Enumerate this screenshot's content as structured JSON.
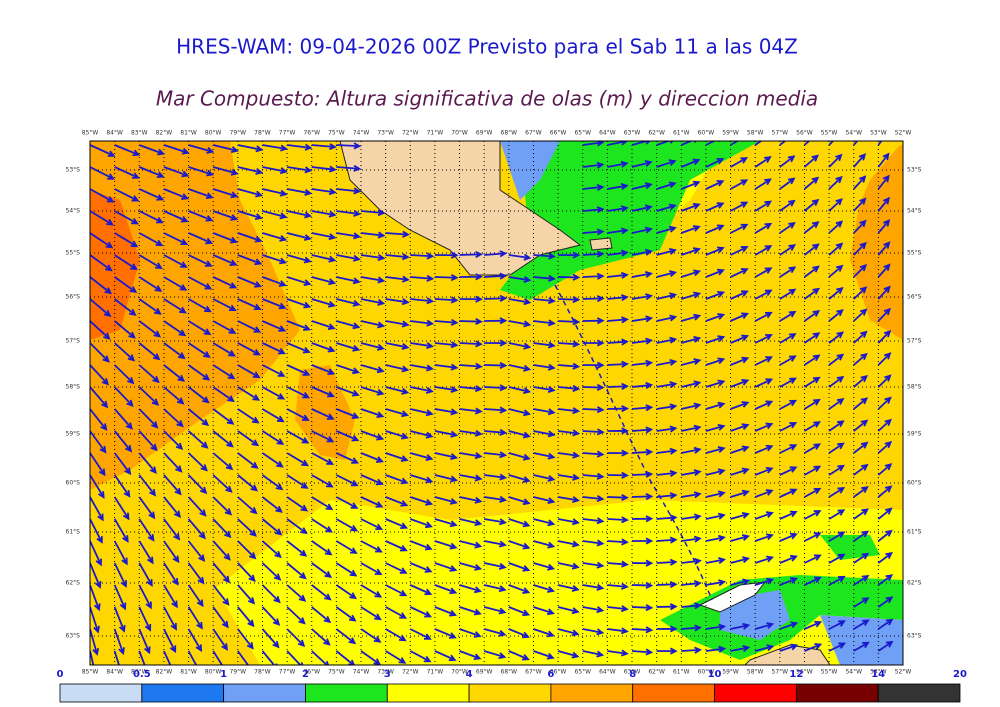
{
  "title": "HRES-WAM: 09-04-2026 00Z Previsto para el Sab 11 a las 04Z",
  "subtitle": "Mar Compuesto: Altura significativa de olas (m) y direccion media",
  "lon_labels": [
    "85°W",
    "84°W",
    "83°W",
    "82°W",
    "81°W",
    "80°W",
    "79°W",
    "78°W",
    "77°W",
    "76°W",
    "75°W",
    "74°W",
    "73°W",
    "72°W",
    "71°W",
    "70°W",
    "69°W",
    "68°W",
    "67°W",
    "66°W",
    "65°W",
    "64°W",
    "63°W",
    "62°W",
    "61°W",
    "60°W",
    "59°W",
    "58°W",
    "57°W",
    "56°W",
    "55°W",
    "54°W",
    "53°W",
    "52°W"
  ],
  "lat_labels": [
    "53°S",
    "54°S",
    "55°S",
    "56°S",
    "57°S",
    "58°S",
    "59°S",
    "60°S",
    "61°S",
    "62°S",
    "63°S"
  ],
  "colorbar": {
    "boundaries": [
      0,
      0.5,
      1,
      2,
      3,
      4,
      6,
      8,
      10,
      12,
      14,
      20
    ],
    "colors": [
      "#c8dcf5",
      "#1e78f0",
      "#70a0f5",
      "#1ee61e",
      "#ffff00",
      "#ffd700",
      "#ffa500",
      "#ff7000",
      "#ff0000",
      "#780000",
      "#333333"
    ]
  }
}
